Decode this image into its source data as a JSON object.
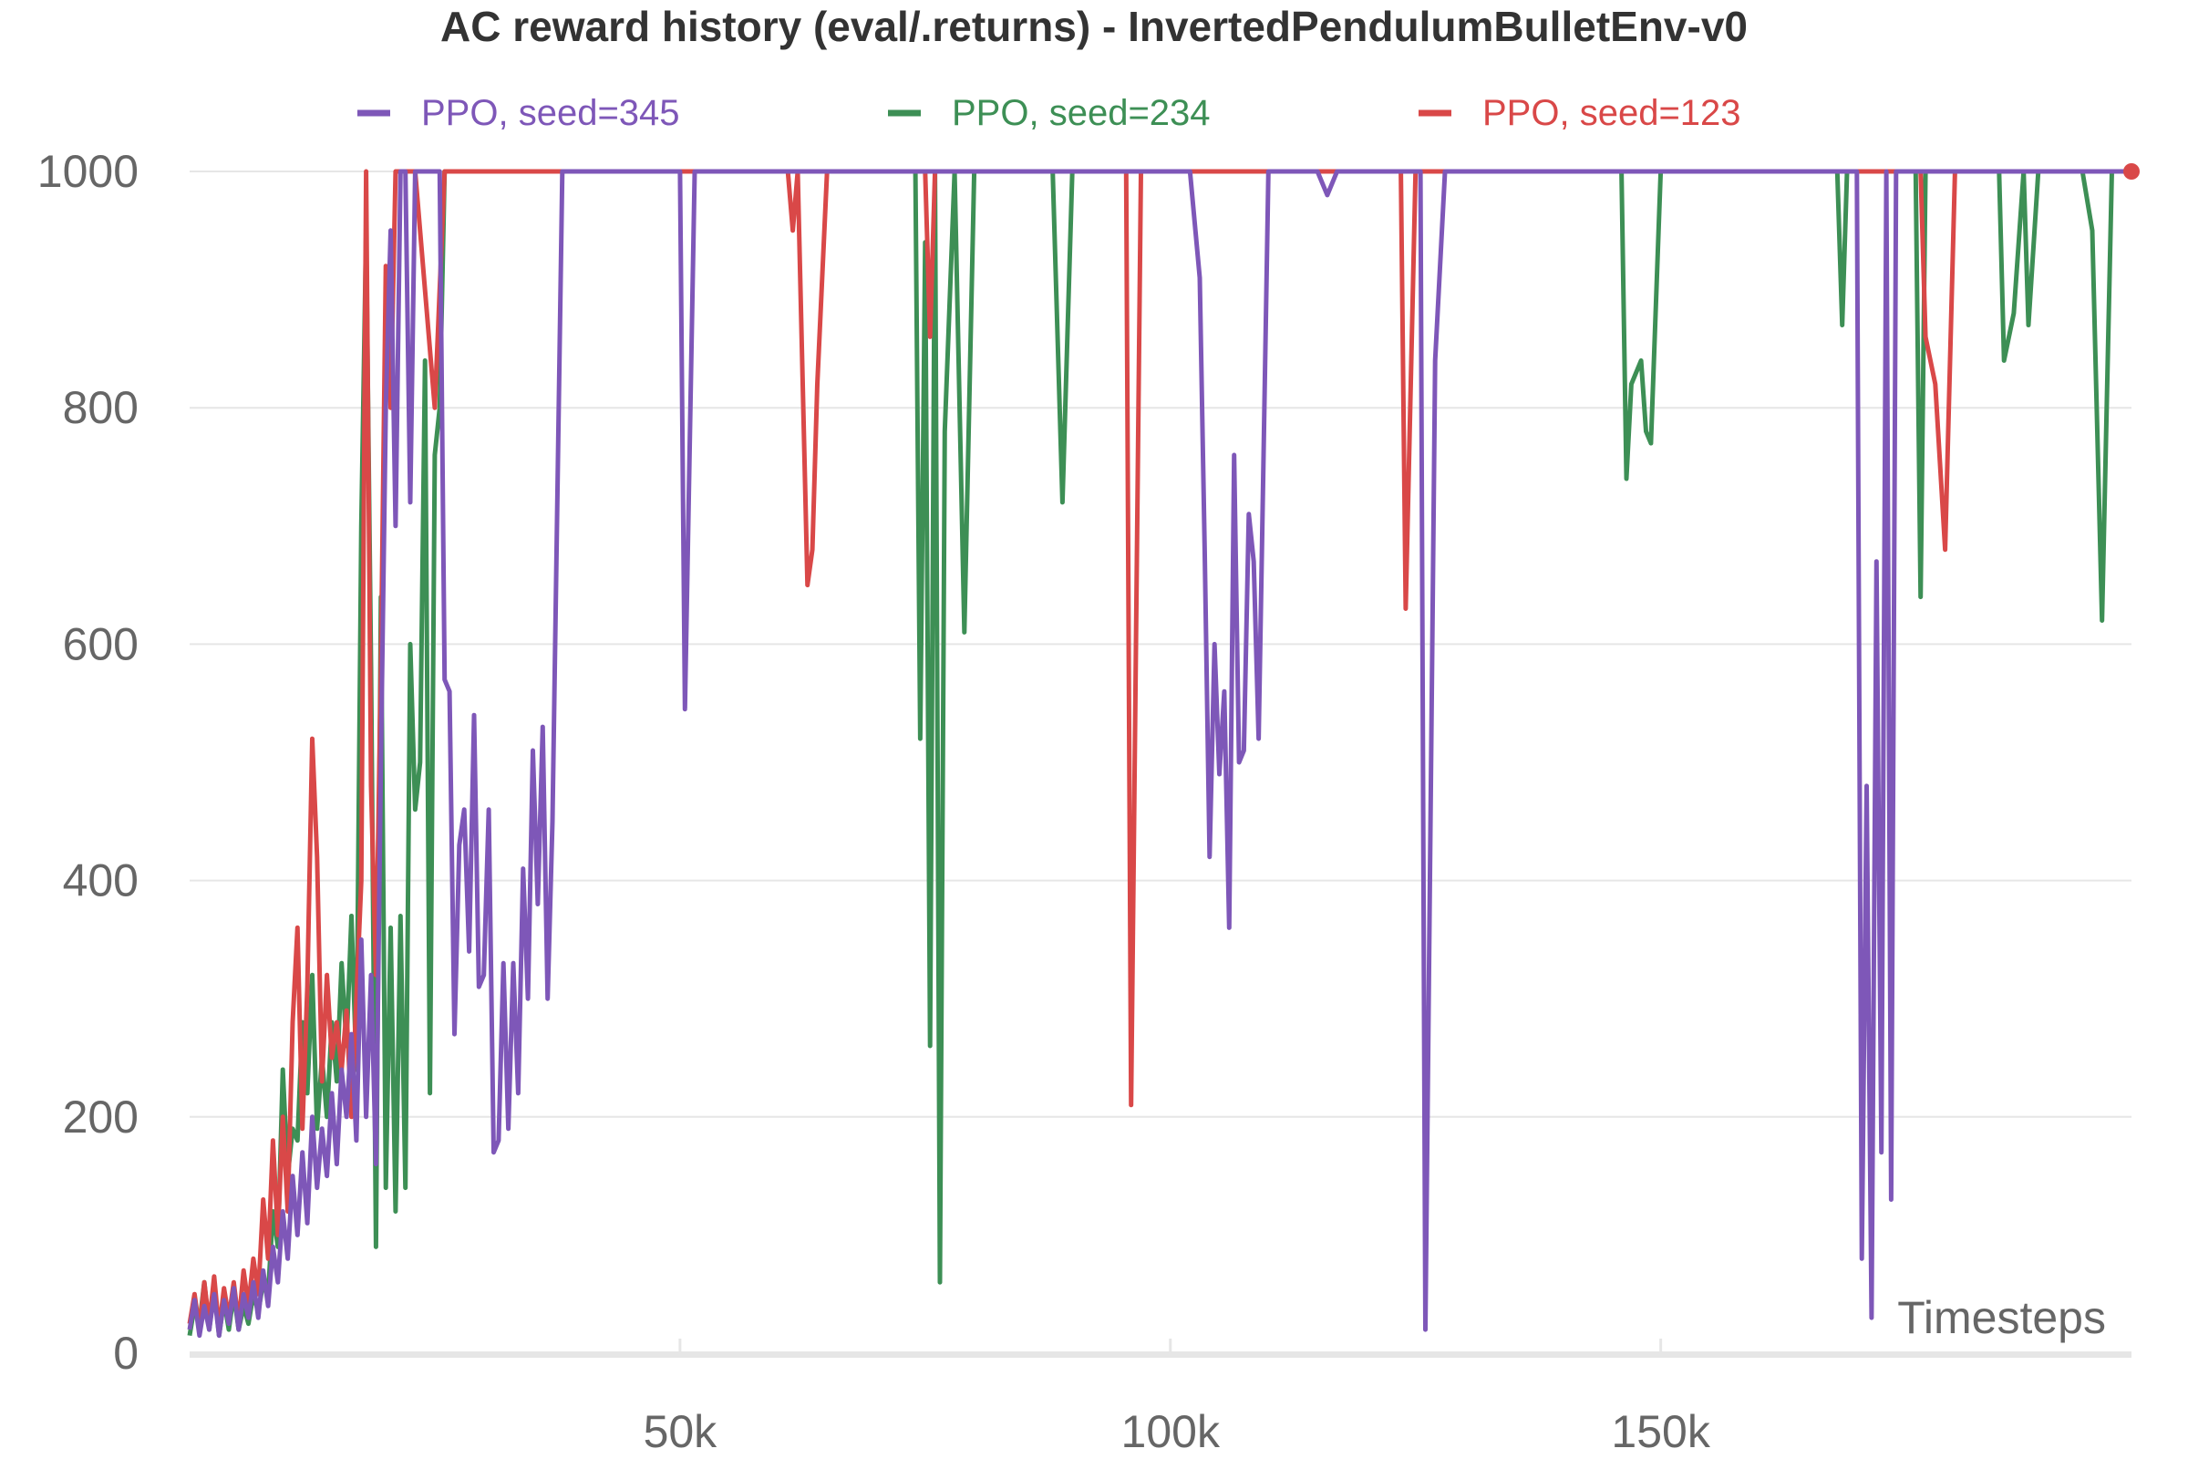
{
  "chart_data": {
    "type": "line",
    "title": "AC reward history (eval/.returns) - InvertedPendulumBulletEnv-v0",
    "xlabel": "Timesteps",
    "ylabel": "",
    "xlim": [
      0,
      198000
    ],
    "ylim": [
      0,
      1000
    ],
    "x_ticks": [
      50000,
      100000,
      150000
    ],
    "x_tick_labels": [
      "50k",
      "100k",
      "150k"
    ],
    "y_ticks": [
      0,
      200,
      400,
      600,
      800,
      1000
    ],
    "y_tick_labels": [
      "0",
      "200",
      "400",
      "600",
      "800",
      "1000"
    ],
    "grid": "horizontal",
    "legend_position": "top",
    "series": [
      {
        "name": "PPO, seed=345",
        "color": "#7e57b8",
        "points": [
          [
            0,
            20
          ],
          [
            500,
            45
          ],
          [
            1000,
            15
          ],
          [
            1500,
            40
          ],
          [
            2000,
            20
          ],
          [
            2500,
            50
          ],
          [
            3000,
            15
          ],
          [
            3500,
            45
          ],
          [
            4000,
            25
          ],
          [
            4500,
            55
          ],
          [
            5000,
            20
          ],
          [
            5500,
            50
          ],
          [
            6000,
            30
          ],
          [
            6500,
            60
          ],
          [
            7000,
            30
          ],
          [
            7500,
            70
          ],
          [
            8000,
            40
          ],
          [
            8500,
            90
          ],
          [
            9000,
            60
          ],
          [
            9500,
            120
          ],
          [
            10000,
            80
          ],
          [
            10500,
            150
          ],
          [
            11000,
            100
          ],
          [
            11500,
            170
          ],
          [
            12000,
            110
          ],
          [
            12500,
            200
          ],
          [
            13000,
            140
          ],
          [
            13500,
            190
          ],
          [
            14000,
            150
          ],
          [
            14500,
            220
          ],
          [
            15000,
            160
          ],
          [
            15500,
            240
          ],
          [
            16000,
            200
          ],
          [
            16500,
            270
          ],
          [
            17000,
            180
          ],
          [
            17500,
            350
          ],
          [
            18000,
            200
          ],
          [
            18500,
            320
          ],
          [
            19000,
            160
          ],
          [
            19500,
            500
          ],
          [
            20000,
            800
          ],
          [
            20500,
            950
          ],
          [
            21000,
            700
          ],
          [
            21500,
            1000
          ],
          [
            22000,
            1000
          ],
          [
            22500,
            720
          ],
          [
            23000,
            1000
          ],
          [
            25500,
            1000
          ],
          [
            26000,
            570
          ],
          [
            26500,
            560
          ],
          [
            27000,
            270
          ],
          [
            27500,
            430
          ],
          [
            28000,
            460
          ],
          [
            28500,
            340
          ],
          [
            29000,
            540
          ],
          [
            29500,
            310
          ],
          [
            30000,
            320
          ],
          [
            30500,
            460
          ],
          [
            31000,
            170
          ],
          [
            31500,
            180
          ],
          [
            32000,
            330
          ],
          [
            32500,
            190
          ],
          [
            33000,
            330
          ],
          [
            33500,
            220
          ],
          [
            34000,
            410
          ],
          [
            34500,
            300
          ],
          [
            35000,
            510
          ],
          [
            35500,
            380
          ],
          [
            36000,
            530
          ],
          [
            36500,
            300
          ],
          [
            37000,
            450
          ],
          [
            38000,
            1000
          ],
          [
            50000,
            1000
          ],
          [
            50500,
            545
          ],
          [
            51500,
            1000
          ],
          [
            102000,
            1000
          ],
          [
            103000,
            910
          ],
          [
            103500,
            680
          ],
          [
            104000,
            420
          ],
          [
            104500,
            600
          ],
          [
            105000,
            490
          ],
          [
            105500,
            560
          ],
          [
            106000,
            360
          ],
          [
            106500,
            760
          ],
          [
            107000,
            500
          ],
          [
            107500,
            510
          ],
          [
            108000,
            710
          ],
          [
            108500,
            670
          ],
          [
            109000,
            520
          ],
          [
            109500,
            760
          ],
          [
            110000,
            1000
          ],
          [
            115000,
            1000
          ],
          [
            116000,
            980
          ],
          [
            117000,
            1000
          ],
          [
            125500,
            1000
          ],
          [
            126000,
            20
          ],
          [
            127000,
            840
          ],
          [
            128000,
            1000
          ],
          [
            170000,
            1000
          ],
          [
            170500,
            80
          ],
          [
            171000,
            480
          ],
          [
            171500,
            30
          ],
          [
            172000,
            670
          ],
          [
            172500,
            170
          ],
          [
            173000,
            1000
          ],
          [
            173500,
            130
          ],
          [
            174000,
            1000
          ],
          [
            198000,
            1000
          ]
        ]
      },
      {
        "name": "PPO, seed=234",
        "color": "#3d8f55",
        "points": [
          [
            0,
            15
          ],
          [
            500,
            40
          ],
          [
            1000,
            25
          ],
          [
            1500,
            60
          ],
          [
            2000,
            20
          ],
          [
            2500,
            55
          ],
          [
            3000,
            15
          ],
          [
            3500,
            45
          ],
          [
            4000,
            20
          ],
          [
            4500,
            50
          ],
          [
            5000,
            20
          ],
          [
            5500,
            40
          ],
          [
            6000,
            25
          ],
          [
            6500,
            50
          ],
          [
            7000,
            35
          ],
          [
            7500,
            60
          ],
          [
            8000,
            50
          ],
          [
            8500,
            120
          ],
          [
            9000,
            90
          ],
          [
            9500,
            240
          ],
          [
            10000,
            150
          ],
          [
            10500,
            190
          ],
          [
            11000,
            180
          ],
          [
            11500,
            280
          ],
          [
            12000,
            220
          ],
          [
            12500,
            320
          ],
          [
            13000,
            190
          ],
          [
            13500,
            250
          ],
          [
            14000,
            200
          ],
          [
            14500,
            280
          ],
          [
            15000,
            230
          ],
          [
            15500,
            330
          ],
          [
            16000,
            260
          ],
          [
            16500,
            370
          ],
          [
            17000,
            240
          ],
          [
            17500,
            700
          ],
          [
            18000,
            950
          ],
          [
            18500,
            580
          ],
          [
            19000,
            90
          ],
          [
            19500,
            640
          ],
          [
            20000,
            140
          ],
          [
            20500,
            360
          ],
          [
            21000,
            120
          ],
          [
            21500,
            370
          ],
          [
            22000,
            140
          ],
          [
            22500,
            600
          ],
          [
            23000,
            460
          ],
          [
            23500,
            500
          ],
          [
            24000,
            840
          ],
          [
            24500,
            220
          ],
          [
            25000,
            760
          ],
          [
            25500,
            800
          ],
          [
            26000,
            1000
          ],
          [
            74000,
            1000
          ],
          [
            74500,
            520
          ],
          [
            75000,
            940
          ],
          [
            75500,
            260
          ],
          [
            76000,
            1000
          ],
          [
            76500,
            60
          ],
          [
            77000,
            780
          ],
          [
            78000,
            1000
          ],
          [
            79000,
            610
          ],
          [
            80000,
            1000
          ],
          [
            88000,
            1000
          ],
          [
            89000,
            720
          ],
          [
            90000,
            1000
          ],
          [
            146000,
            1000
          ],
          [
            146500,
            740
          ],
          [
            147000,
            820
          ],
          [
            148000,
            840
          ],
          [
            148500,
            780
          ],
          [
            149000,
            770
          ],
          [
            150000,
            1000
          ],
          [
            168000,
            1000
          ],
          [
            168500,
            870
          ],
          [
            169000,
            1000
          ],
          [
            176000,
            1000
          ],
          [
            176500,
            640
          ],
          [
            177000,
            1000
          ],
          [
            184500,
            1000
          ],
          [
            185000,
            840
          ],
          [
            186000,
            880
          ],
          [
            187000,
            1000
          ],
          [
            187500,
            870
          ],
          [
            188500,
            1000
          ],
          [
            193000,
            1000
          ],
          [
            194000,
            950
          ],
          [
            195000,
            620
          ],
          [
            196000,
            1000
          ],
          [
            198000,
            1000
          ]
        ]
      },
      {
        "name": "PPO, seed=123",
        "color": "#d94848",
        "points": [
          [
            0,
            25
          ],
          [
            500,
            50
          ],
          [
            1000,
            20
          ],
          [
            1500,
            60
          ],
          [
            2000,
            25
          ],
          [
            2500,
            65
          ],
          [
            3000,
            20
          ],
          [
            3500,
            55
          ],
          [
            4000,
            30
          ],
          [
            4500,
            60
          ],
          [
            5000,
            25
          ],
          [
            5500,
            70
          ],
          [
            6000,
            40
          ],
          [
            6500,
            80
          ],
          [
            7000,
            50
          ],
          [
            7500,
            130
          ],
          [
            8000,
            80
          ],
          [
            8500,
            180
          ],
          [
            9000,
            100
          ],
          [
            9500,
            200
          ],
          [
            10000,
            120
          ],
          [
            10500,
            280
          ],
          [
            11000,
            360
          ],
          [
            11500,
            190
          ],
          [
            12000,
            310
          ],
          [
            12500,
            520
          ],
          [
            13000,
            420
          ],
          [
            13500,
            230
          ],
          [
            14000,
            320
          ],
          [
            14500,
            250
          ],
          [
            15000,
            280
          ],
          [
            15500,
            240
          ],
          [
            16000,
            290
          ],
          [
            16500,
            200
          ],
          [
            17000,
            300
          ],
          [
            17500,
            400
          ],
          [
            18000,
            1000
          ],
          [
            18500,
            480
          ],
          [
            19000,
            320
          ],
          [
            19500,
            580
          ],
          [
            20000,
            920
          ],
          [
            20500,
            800
          ],
          [
            21000,
            1000
          ],
          [
            21500,
            1000
          ],
          [
            23000,
            1000
          ],
          [
            25000,
            800
          ],
          [
            26000,
            1000
          ],
          [
            61000,
            1000
          ],
          [
            61500,
            950
          ],
          [
            62000,
            1000
          ],
          [
            63000,
            650
          ],
          [
            63500,
            680
          ],
          [
            64000,
            820
          ],
          [
            65000,
            1000
          ],
          [
            75000,
            1000
          ],
          [
            75500,
            860
          ],
          [
            76000,
            1000
          ],
          [
            95500,
            1000
          ],
          [
            96000,
            210
          ],
          [
            97000,
            1000
          ],
          [
            123500,
            1000
          ],
          [
            124000,
            630
          ],
          [
            125000,
            1000
          ],
          [
            176500,
            1000
          ],
          [
            177000,
            860
          ],
          [
            178000,
            820
          ],
          [
            179000,
            680
          ],
          [
            180000,
            1000
          ],
          [
            198000,
            1000
          ]
        ]
      }
    ]
  }
}
